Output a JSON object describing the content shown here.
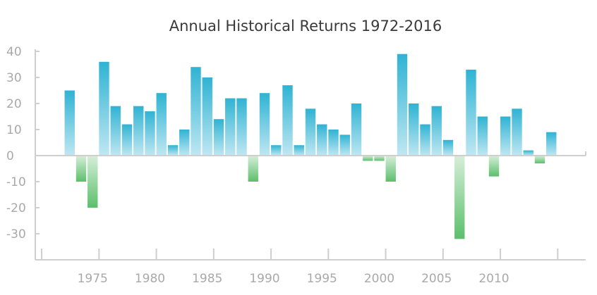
{
  "chart_data": {
    "type": "bar",
    "title": "Annual Historical Returns 1972-2016",
    "xlabel": "",
    "ylabel": "",
    "x": [
      1972,
      1973,
      1974,
      1975,
      1976,
      1977,
      1978,
      1979,
      1980,
      1981,
      1982,
      1983,
      1984,
      1985,
      1986,
      1987,
      1988,
      1989,
      1990,
      1991,
      1992,
      1993,
      1994,
      1995,
      1996,
      1997,
      1998,
      1999,
      2000,
      2001,
      2002,
      2003,
      2004,
      2005,
      2006,
      2007,
      2008,
      2009,
      2010,
      2011,
      2012,
      2013,
      2014,
      2015,
      2016
    ],
    "values": [
      null,
      25,
      -10,
      -20,
      36,
      19,
      12,
      19,
      17,
      24,
      4,
      10,
      34,
      30,
      14,
      22,
      22,
      -10,
      24,
      4,
      27,
      4,
      18,
      12,
      10,
      8,
      20,
      -2,
      -2,
      -10,
      39,
      20,
      12,
      19,
      6,
      -32,
      33,
      15,
      -8,
      15,
      18,
      2,
      -3,
      9,
      null
    ],
    "ylim": [
      -40,
      40
    ],
    "xlim": [
      1970,
      2018
    ],
    "yticks": [
      "40",
      "30",
      "20",
      "10",
      "0",
      "-10",
      "-20",
      "-30"
    ],
    "ytick_values": [
      40,
      30,
      20,
      10,
      0,
      -10,
      -20,
      -30
    ],
    "xticks": [
      "1975",
      "1980",
      "1985",
      "1990",
      "1995",
      "2000",
      "2005",
      "2010"
    ],
    "xtick_values": [
      1975,
      1980,
      1985,
      1990,
      1995,
      2000,
      2005,
      2010
    ],
    "positive_color": "#2fb3d3",
    "positive_color_light": "#bfe7f2",
    "negative_color": "#5cbf6c",
    "negative_color_light": "#d6eed9",
    "grid": false,
    "legend": "none"
  }
}
